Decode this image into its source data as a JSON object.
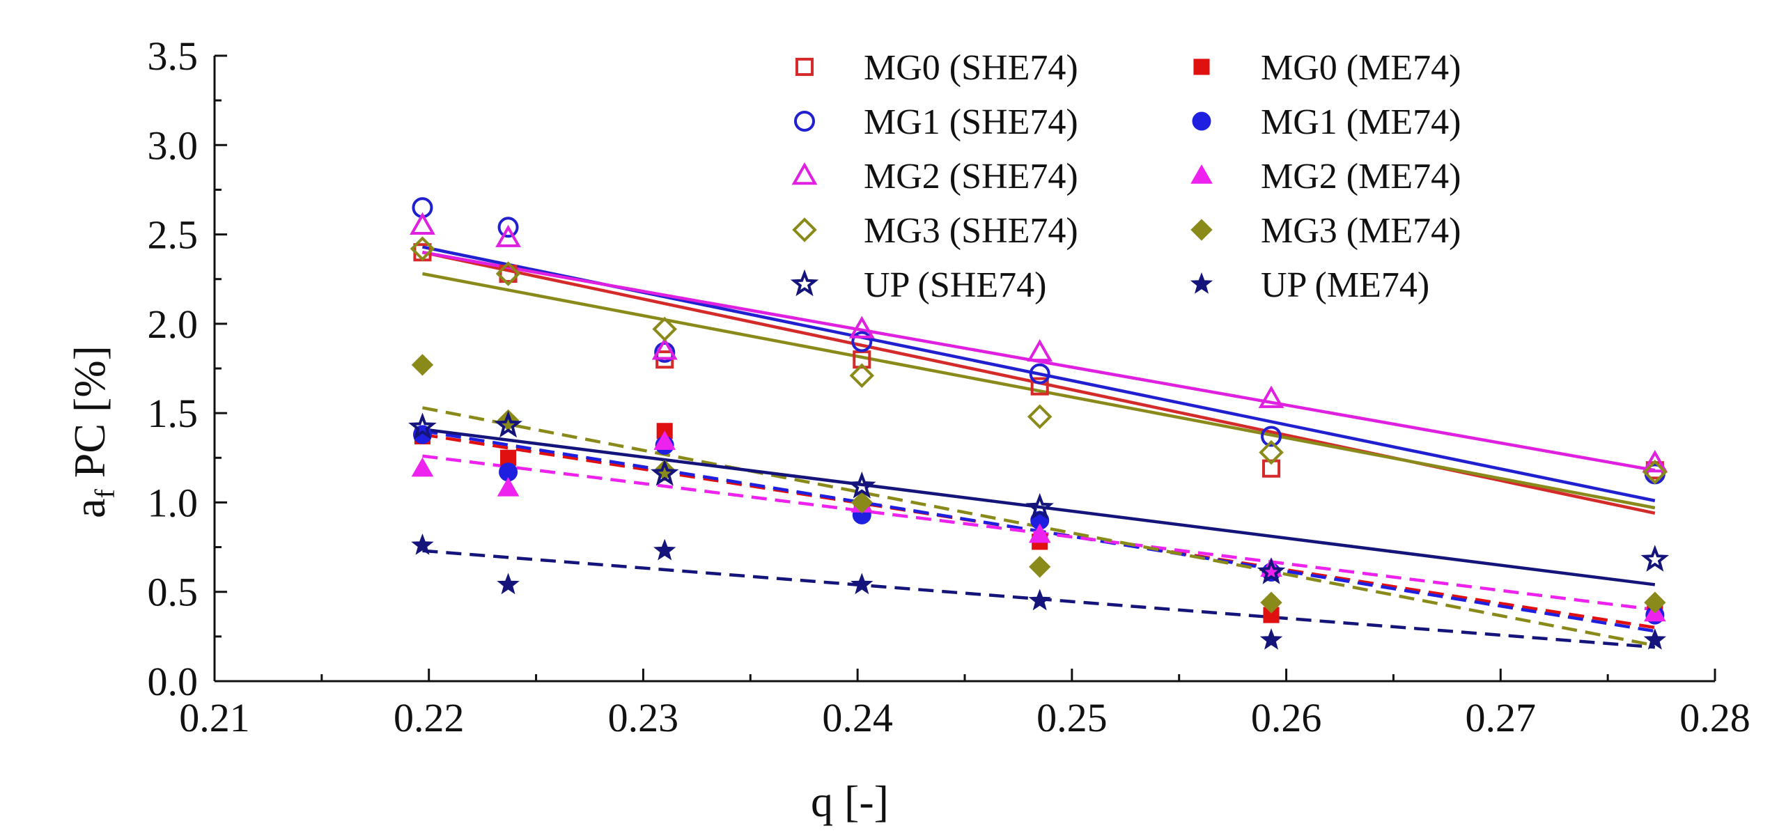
{
  "chart_data": {
    "type": "scatter",
    "title": "",
    "xlabel": "q [-]",
    "ylabel": {
      "main": "a",
      "sub": "f",
      "rest": " PC [%]"
    },
    "xlim": [
      0.21,
      0.28
    ],
    "ylim": [
      0.0,
      3.5
    ],
    "x_ticks": [
      "0.21",
      "0.22",
      "0.23",
      "0.24",
      "0.25",
      "0.26",
      "0.27",
      "0.28"
    ],
    "y_ticks": [
      "0.0",
      "0.5",
      "1.0",
      "1.5",
      "2.0",
      "2.5",
      "3.0",
      "3.5"
    ],
    "grid": false,
    "legend_position": "top-right",
    "x": [
      0.2197,
      0.2237,
      0.231,
      0.2402,
      0.2485,
      0.2593,
      0.2772
    ],
    "series": [
      {
        "name": "MG0 (SHE74)",
        "marker": "square",
        "filled": false,
        "color": "#d42a2a",
        "line": "solid",
        "values": [
          2.4,
          2.28,
          1.8,
          1.8,
          1.65,
          1.19,
          1.18
        ],
        "fit": [
          2.4,
          0.94
        ]
      },
      {
        "name": "MG0 (ME74)",
        "marker": "square",
        "filled": true,
        "color": "#e01010",
        "line": "dashed",
        "values": [
          1.37,
          1.25,
          1.4,
          0.97,
          0.78,
          0.37,
          0.39
        ],
        "fit": [
          1.38,
          0.3
        ]
      },
      {
        "name": "MG1 (SHE74)",
        "marker": "circle",
        "filled": false,
        "color": "#2020d0",
        "line": "solid",
        "values": [
          2.65,
          2.54,
          1.84,
          1.9,
          1.72,
          1.37,
          1.16
        ],
        "fit": [
          2.43,
          1.01
        ]
      },
      {
        "name": "MG1 (ME74)",
        "marker": "circle",
        "filled": true,
        "color": "#1f1fe0",
        "line": "dashed",
        "values": [
          1.38,
          1.17,
          1.32,
          0.93,
          0.9,
          0.61,
          0.37
        ],
        "fit": [
          1.4,
          0.28
        ]
      },
      {
        "name": "MG2 (SHE74)",
        "marker": "triangle",
        "filled": false,
        "color": "#e020e0",
        "line": "solid",
        "values": [
          2.55,
          2.48,
          1.85,
          1.97,
          1.84,
          1.58,
          1.22
        ],
        "fit": [
          2.4,
          1.18
        ]
      },
      {
        "name": "MG2 (ME74)",
        "marker": "triangle",
        "filled": true,
        "color": "#ee22ee",
        "line": "dashed",
        "values": [
          1.19,
          1.08,
          1.34,
          0.99,
          0.82,
          0.63,
          0.38
        ],
        "fit": [
          1.26,
          0.4
        ]
      },
      {
        "name": "MG3 (SHE74)",
        "marker": "diamond",
        "filled": false,
        "color": "#8a8a1a",
        "line": "solid",
        "values": [
          2.42,
          2.28,
          1.97,
          1.71,
          1.48,
          1.28,
          1.17
        ],
        "fit": [
          2.28,
          0.97
        ]
      },
      {
        "name": "MG3 (ME74)",
        "marker": "diamond",
        "filled": true,
        "color": "#8a8a1a",
        "line": "dashed",
        "values": [
          1.77,
          1.46,
          1.18,
          1.0,
          0.64,
          0.44,
          0.44
        ],
        "fit": [
          1.53,
          0.2
        ]
      },
      {
        "name": "UP (SHE74)",
        "marker": "star",
        "filled": false,
        "color": "#14147a",
        "line": "solid",
        "values": [
          1.42,
          1.43,
          1.16,
          1.09,
          0.97,
          0.61,
          0.68
        ],
        "fit": [
          1.41,
          0.54
        ]
      },
      {
        "name": "UP (ME74)",
        "marker": "star",
        "filled": true,
        "color": "#14147a",
        "line": "dashed",
        "values": [
          0.76,
          0.54,
          0.73,
          0.54,
          0.45,
          0.23,
          0.23
        ],
        "fit": [
          0.73,
          0.19
        ]
      }
    ]
  }
}
